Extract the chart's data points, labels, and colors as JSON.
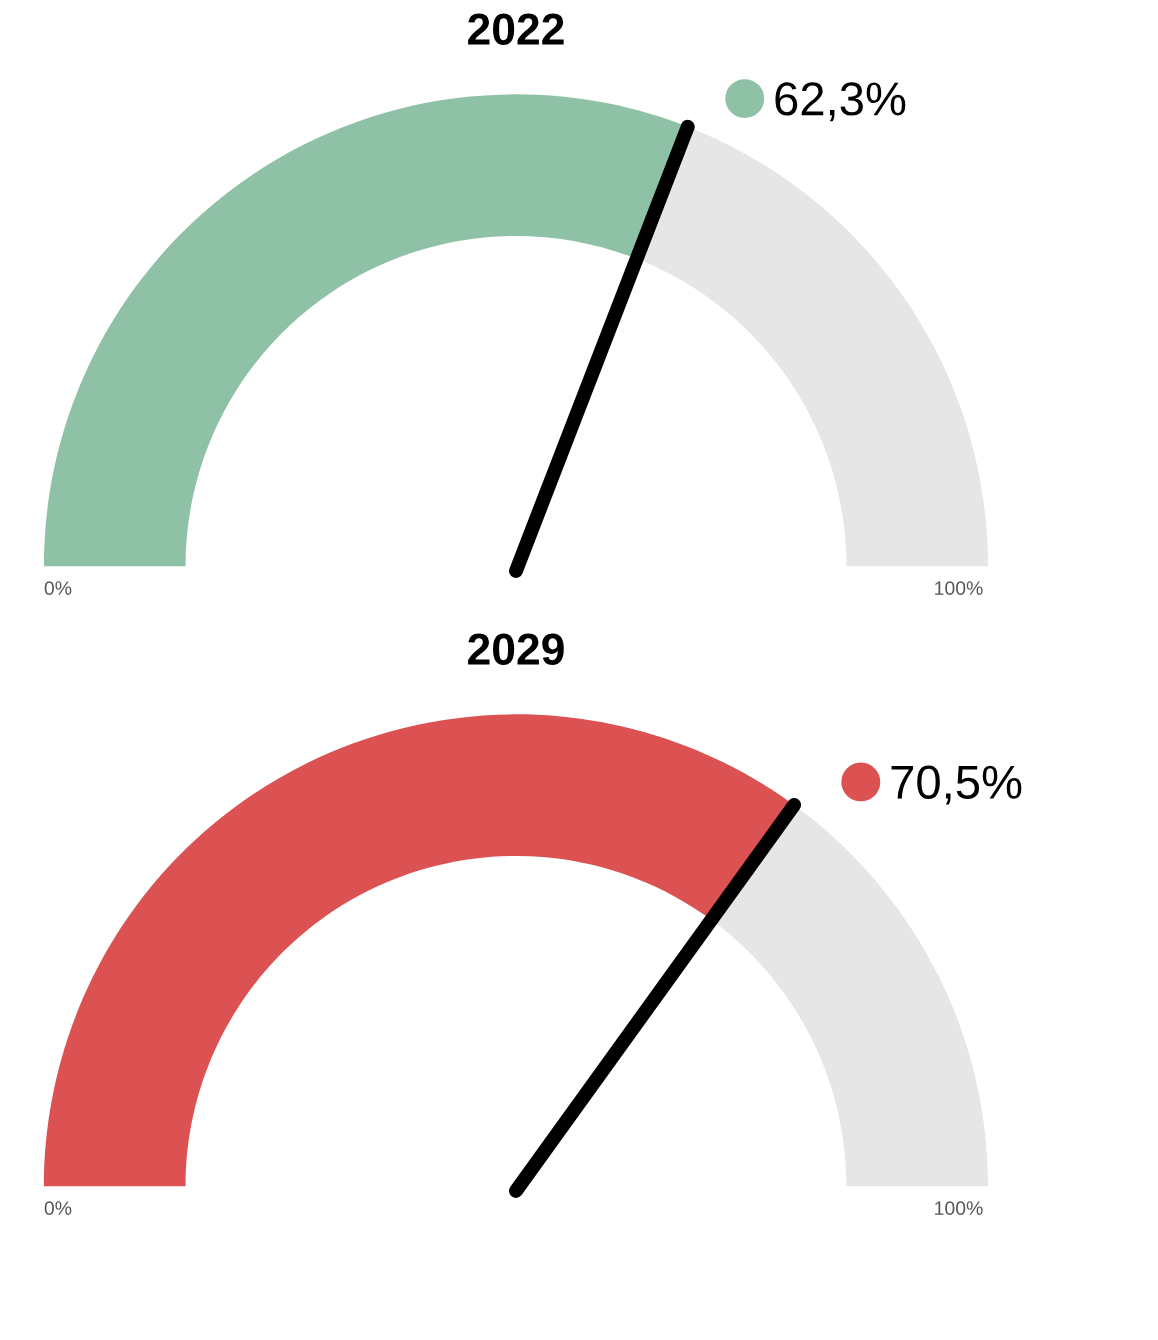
{
  "chart_data": [
    {
      "type": "donut",
      "title": "2022",
      "categories": [
        "62,3%",
        null
      ],
      "values": [
        62.3,
        37.7
      ],
      "colors": [
        "#8fc1a6",
        "#e6e6e6"
      ],
      "needle": "62,3%",
      "annotations": [
        "0%",
        "100%"
      ]
    },
    {
      "type": "donut",
      "title": "2029",
      "categories": [
        "70,5%",
        null
      ],
      "values": [
        70.5,
        29.5
      ],
      "colors": [
        "#dc5252",
        "#e6e6e6"
      ],
      "needle": "70,5%",
      "annotations": [
        "0%",
        "100%"
      ]
    }
  ]
}
